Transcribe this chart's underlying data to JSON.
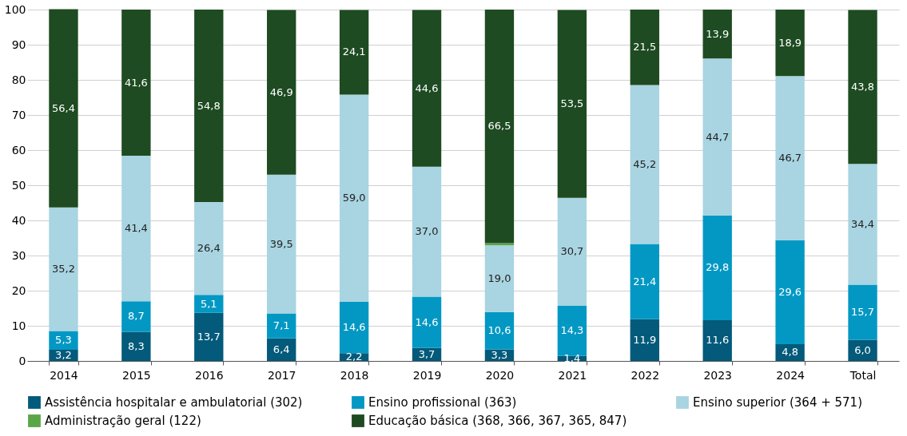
{
  "chart_data": {
    "type": "bar",
    "stacked": true,
    "categories": [
      "2014",
      "2015",
      "2016",
      "2017",
      "2018",
      "2019",
      "2020",
      "2021",
      "2022",
      "2023",
      "2024",
      "Total"
    ],
    "series": [
      {
        "name": "Assistência hospitalar e ambulatorial (302)",
        "color": "#035a7a",
        "values": [
          3.2,
          8.3,
          13.7,
          6.4,
          2.2,
          3.7,
          3.3,
          1.4,
          11.9,
          11.6,
          4.8,
          6.0
        ],
        "value_labels": [
          "3,2",
          "8,3",
          "13,7",
          "6,4",
          "2,2",
          "3,7",
          "3,3",
          "1,4",
          "11,9",
          "11,6",
          "4,8",
          "6,0"
        ]
      },
      {
        "name": "Ensino profissional (363)",
        "color": "#0398c4",
        "values": [
          5.3,
          8.7,
          5.1,
          7.1,
          14.6,
          14.6,
          10.6,
          14.3,
          21.4,
          29.8,
          29.6,
          15.7
        ],
        "value_labels": [
          "5,3",
          "8,7",
          "5,1",
          "7,1",
          "14,6",
          "14,6",
          "10,6",
          "14,3",
          "21,4",
          "29,8",
          "29,6",
          "15,7"
        ]
      },
      {
        "name": "Ensino superior (364 + 571)",
        "color": "#a9d4e1",
        "values": [
          35.2,
          41.4,
          26.4,
          39.5,
          59.0,
          37.0,
          19.0,
          30.7,
          45.2,
          44.7,
          46.7,
          34.4
        ],
        "value_labels": [
          "35,2",
          "41,4",
          "26,4",
          "39,5",
          "59,0",
          "37,0",
          "19,0",
          "30,7",
          "45,2",
          "44,7",
          "46,7",
          "34,4"
        ]
      },
      {
        "name": "Administração geral (122)",
        "color": "#5ba646",
        "values": [
          null,
          null,
          null,
          null,
          null,
          null,
          0.6,
          null,
          null,
          null,
          null,
          null
        ],
        "value_labels": [
          null,
          null,
          null,
          null,
          null,
          null,
          null,
          null,
          null,
          null,
          null,
          null
        ]
      },
      {
        "name": "Educação básica (368, 366, 367, 365, 847)",
        "color": "#1e4b21",
        "values": [
          56.4,
          41.6,
          54.8,
          46.9,
          24.1,
          44.6,
          66.5,
          53.5,
          21.5,
          13.9,
          18.9,
          43.8
        ],
        "value_labels": [
          "56,4",
          "41,6",
          "54,8",
          "46,9",
          "24,1",
          "44,6",
          "66,5",
          "53,5",
          "21,5",
          "13,9",
          "18,9",
          "43,8"
        ]
      }
    ],
    "ylim": [
      0,
      100
    ],
    "yticks": [
      0,
      10,
      20,
      30,
      40,
      50,
      60,
      70,
      80,
      90,
      100
    ],
    "grid": "y",
    "legend": "bottom"
  }
}
